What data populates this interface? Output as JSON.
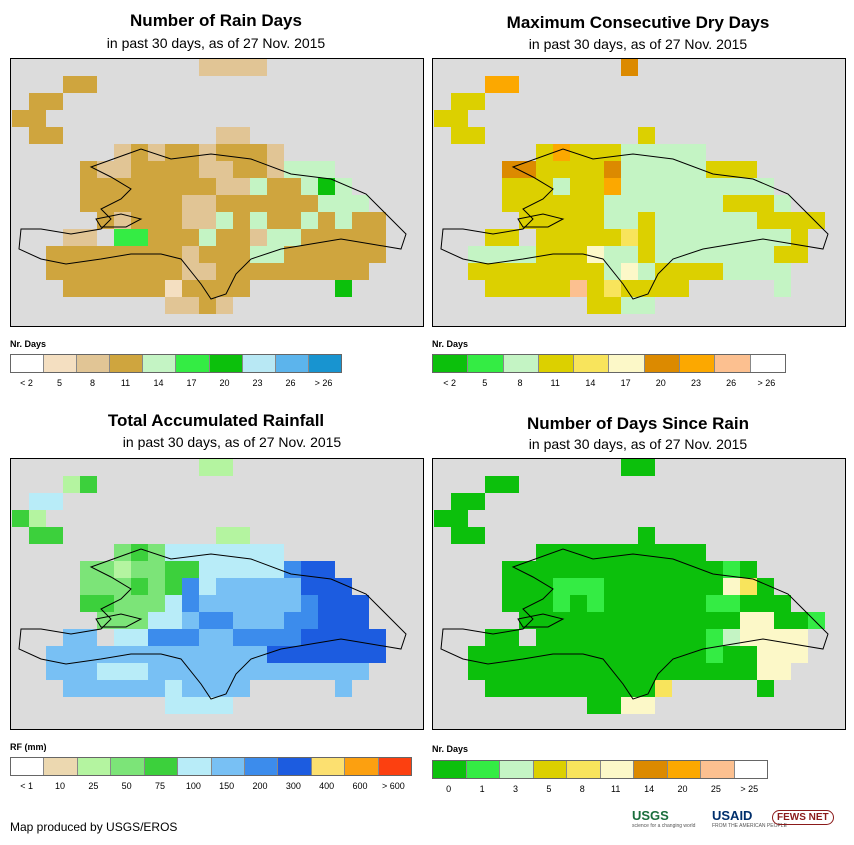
{
  "footer": "Map produced by USGS/EROS",
  "logos": {
    "usgs": "USGS",
    "usgs_tag": "science for a changing world",
    "usaid": "USAID",
    "usaid_tag": "FROM THE AMERICAN PEOPLE",
    "fews": "FEWS NET"
  },
  "panels": [
    {
      "title": "Number of Rain Days",
      "subtitle": "in past 30 days, as of 27 Nov. 2015",
      "legend_title": "Nr. Days",
      "legend_colors": [
        "#ffffff",
        "#f4dfc1",
        "#e1c595",
        "#cfa53e",
        "#c4f4c4",
        "#34ec44",
        "#0cc00c",
        "#b8e8f4",
        "#5cb4ec",
        "#1894d0"
      ],
      "legend_labels": [
        "< 2",
        "5",
        "8",
        "11",
        "14",
        "17",
        "20",
        "23",
        "26",
        "> 26"
      ]
    },
    {
      "title": "Maximum Consecutive Dry Days",
      "subtitle": "in past 30 days, as of 27 Nov. 2015",
      "legend_title": "Nr. Days",
      "legend_colors": [
        "#0cc00c",
        "#34ec44",
        "#c4f4c4",
        "#dcd000",
        "#f8e45c",
        "#fcf8c8",
        "#dc8a00",
        "#fca800",
        "#fcc090",
        "#ffffff"
      ],
      "legend_labels": [
        "< 2",
        "5",
        "8",
        "11",
        "14",
        "17",
        "20",
        "23",
        "26",
        "> 26"
      ]
    },
    {
      "title": "Total Accumulated Rainfall",
      "subtitle": "in past 30 days, as of 27 Nov. 2015",
      "legend_title": "RF (mm)",
      "legend_colors": [
        "#ffffff",
        "#ecd8b0",
        "#b4f4a0",
        "#7ce478",
        "#3cd03c",
        "#b8ecf8",
        "#78c0f4",
        "#3c8cec",
        "#1c5ce0",
        "#fce070",
        "#fca010",
        "#fc4010"
      ],
      "legend_labels": [
        "< 1",
        "10",
        "25",
        "50",
        "75",
        "100",
        "150",
        "200",
        "300",
        "400",
        "600",
        "> 600"
      ]
    },
    {
      "title": "Number of Days Since Rain",
      "subtitle": "in past 30 days, as of 27 Nov. 2015",
      "legend_title": "Nr. Days",
      "legend_colors": [
        "#0cc00c",
        "#34ec44",
        "#c4f4c4",
        "#dcd000",
        "#f8e45c",
        "#fcf8c8",
        "#dc8a00",
        "#fca800",
        "#fcc090",
        "#ffffff"
      ],
      "legend_labels": [
        "0",
        "1",
        "3",
        "5",
        "8",
        "11",
        "14",
        "20",
        "25",
        "> 25"
      ]
    }
  ],
  "chart_data": [
    {
      "type": "heatmap",
      "title": "Number of Rain Days",
      "subtitle": "in past 30 days, as of 27 Nov. 2015",
      "legend": {
        "title": "Nr. Days",
        "breaks": [
          "< 2",
          "5",
          "8",
          "11",
          "14",
          "17",
          "20",
          "23",
          "26",
          "> 26"
        ]
      },
      "rows": [
        "...........2222.....",
        "...33..............",
        ".33....................",
        "33..................",
        ".33.........22.......",
        "......2323323332......",
        "....322333322332444...",
        "....3333333322433464..",
        "....33333322333333444.",
        ".....32333224343343433.",
        "...22.5533343324433333.",
        "..33333333233344333333",
        "..3333333322333333333.",
        "...33333313333.....6..",
        ".........2232.........",
        ".........3............"
      ]
    },
    {
      "type": "heatmap",
      "title": "Maximum Consecutive Dry Days",
      "subtitle": "in past 30 days, as of 27 Nov. 2015",
      "legend": {
        "title": "Nr. Days",
        "breaks": [
          "< 2",
          "5",
          "8",
          "11",
          "14",
          "17",
          "20",
          "23",
          "26",
          "> 26"
        ]
      },
      "rows": [
        "...........6.........",
        "...77..............",
        ".33....................",
        "33..................",
        ".33.........3........",
        "......3733322222......",
        "....663333622222333...",
        "....3332337222222222..",
        "....33333322222223332.",
        ".....333332232222223333",
        "...33.3333343222222223.",
        "..22223335223222222233",
        "..3333333325233332222.",
        "...333338343333.....2.",
        ".........3322.........",
        ".........3............"
      ]
    },
    {
      "type": "heatmap",
      "title": "Total Accumulated Rainfall",
      "subtitle": "in past 30 days, as of 27 Nov. 2015",
      "legend": {
        "title": "RF (mm)",
        "breaks": [
          "< 1",
          "10",
          "25",
          "50",
          "75",
          "100",
          "150",
          "200",
          "300",
          "400",
          "600",
          "> 600"
        ]
      },
      "rows": [
        "...........22.......",
        "...24..............",
        ".55....................",
        "42..................",
        ".44.........22.......",
        "......3435555555......",
        "....332334455555788...",
        "....3334347566666888..",
        "....44333576666667888.",
        ".....3335567766677888.",
        "...66.5577766777788888.",
        "..66666666666668888888",
        "..6665556666666666666.",
        "...66666656666.....6..",
        ".........5555.........",
        ".........6............"
      ]
    },
    {
      "type": "heatmap",
      "title": "Number of Days Since Rain",
      "subtitle": "in past 30 days, as of 27 Nov. 2015",
      "legend": {
        "title": "Nr. Days",
        "breaks": [
          "0",
          "1",
          "3",
          "5",
          "8",
          "11",
          "14",
          "20",
          "25",
          "> 25"
        ]
      },
      "rows": [
        "...........00.........",
        "...00..............",
        ".00....................",
        "00..................",
        ".00.........0........",
        "......0000000000......",
        "....000000000000010...",
        "....0001110000000540..",
        "....00010100000011000.",
        ".....000000000000055001",
        "...00.0000000000125555.",
        "..00000000000000100555",
        "..0000000000000000055.",
        "...00000000004.....0..",
        ".........0055.........",
        ".........5............"
      ]
    }
  ]
}
